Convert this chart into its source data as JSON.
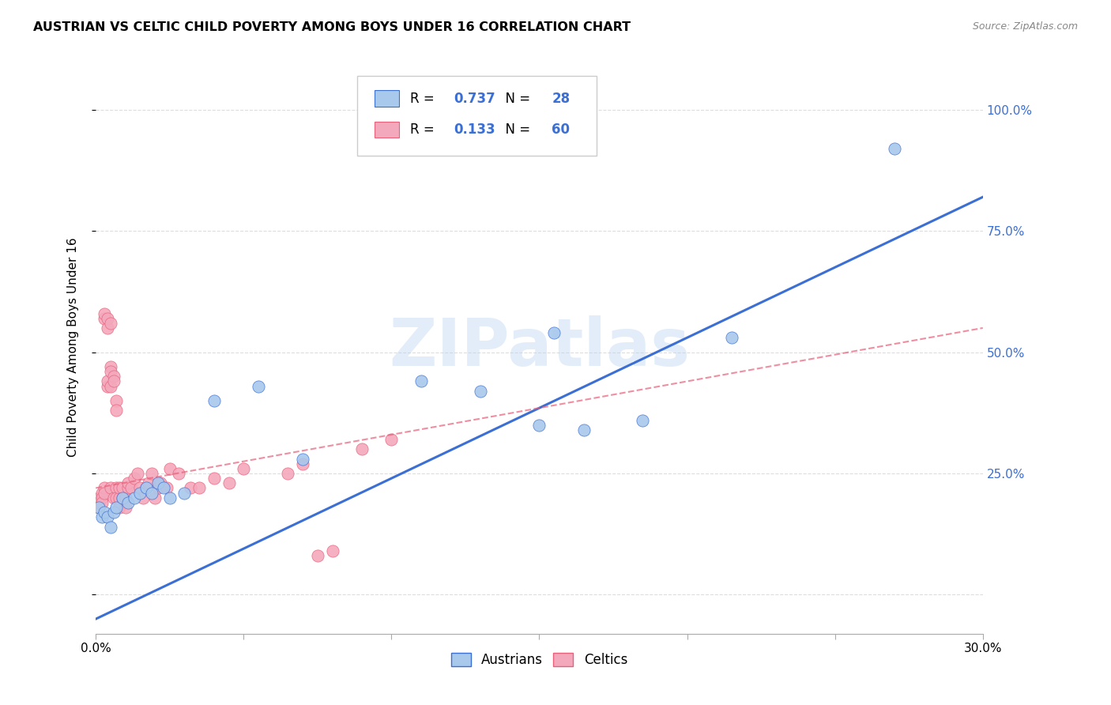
{
  "title": "AUSTRIAN VS CELTIC CHILD POVERTY AMONG BOYS UNDER 16 CORRELATION CHART",
  "source": "Source: ZipAtlas.com",
  "ylabel": "Child Poverty Among Boys Under 16",
  "xlim": [
    0.0,
    0.3
  ],
  "ylim": [
    -0.08,
    1.1
  ],
  "xtick_positions": [
    0.0,
    0.05,
    0.1,
    0.15,
    0.2,
    0.25,
    0.3
  ],
  "xtick_labels": [
    "0.0%",
    "",
    "",
    "",
    "",
    "",
    "30.0%"
  ],
  "yticks": [
    0.0,
    0.25,
    0.5,
    0.75,
    1.0
  ],
  "ytick_labels_right": [
    "",
    "25.0%",
    "50.0%",
    "75.0%",
    "100.0%"
  ],
  "R_austrians": 0.737,
  "N_austrians": 28,
  "R_celtics": 0.133,
  "N_celtics": 60,
  "color_austrians": "#A8C8EC",
  "color_celtics": "#F4A8BC",
  "color_line_austrians": "#3B6FD4",
  "color_line_celtics": "#E8607A",
  "background_color": "#FFFFFF",
  "grid_color": "#DDDDDD",
  "watermark": "ZIPatlas",
  "aus_line_x": [
    0.0,
    0.3
  ],
  "aus_line_y": [
    -0.05,
    0.82
  ],
  "cel_line_x": [
    0.0,
    0.3
  ],
  "cel_line_y": [
    0.22,
    0.55
  ],
  "austrians_x": [
    0.001,
    0.002,
    0.003,
    0.004,
    0.005,
    0.006,
    0.007,
    0.009,
    0.011,
    0.013,
    0.015,
    0.017,
    0.019,
    0.021,
    0.023,
    0.025,
    0.03,
    0.04,
    0.055,
    0.07,
    0.11,
    0.13,
    0.15,
    0.155,
    0.165,
    0.185,
    0.215,
    0.27
  ],
  "austrians_y": [
    0.18,
    0.16,
    0.17,
    0.16,
    0.14,
    0.17,
    0.18,
    0.2,
    0.19,
    0.2,
    0.21,
    0.22,
    0.21,
    0.23,
    0.22,
    0.2,
    0.21,
    0.4,
    0.43,
    0.28,
    0.44,
    0.42,
    0.35,
    0.54,
    0.34,
    0.36,
    0.53,
    0.92
  ],
  "celtics_x": [
    0.001,
    0.001,
    0.001,
    0.002,
    0.002,
    0.002,
    0.003,
    0.003,
    0.003,
    0.003,
    0.004,
    0.004,
    0.004,
    0.004,
    0.005,
    0.005,
    0.005,
    0.005,
    0.005,
    0.006,
    0.006,
    0.006,
    0.007,
    0.007,
    0.007,
    0.007,
    0.008,
    0.008,
    0.008,
    0.009,
    0.009,
    0.01,
    0.01,
    0.011,
    0.011,
    0.012,
    0.013,
    0.014,
    0.015,
    0.016,
    0.017,
    0.018,
    0.019,
    0.02,
    0.021,
    0.022,
    0.024,
    0.025,
    0.028,
    0.032,
    0.035,
    0.04,
    0.045,
    0.05,
    0.065,
    0.07,
    0.075,
    0.08,
    0.09,
    0.1
  ],
  "celtics_y": [
    0.2,
    0.18,
    0.19,
    0.21,
    0.2,
    0.19,
    0.22,
    0.21,
    0.57,
    0.58,
    0.55,
    0.57,
    0.43,
    0.44,
    0.56,
    0.47,
    0.46,
    0.43,
    0.22,
    0.45,
    0.44,
    0.2,
    0.4,
    0.38,
    0.22,
    0.2,
    0.2,
    0.18,
    0.22,
    0.2,
    0.22,
    0.2,
    0.18,
    0.22,
    0.23,
    0.22,
    0.24,
    0.25,
    0.22,
    0.2,
    0.22,
    0.23,
    0.25,
    0.2,
    0.22,
    0.23,
    0.22,
    0.26,
    0.25,
    0.22,
    0.22,
    0.24,
    0.23,
    0.26,
    0.25,
    0.27,
    0.08,
    0.09,
    0.3,
    0.32
  ]
}
